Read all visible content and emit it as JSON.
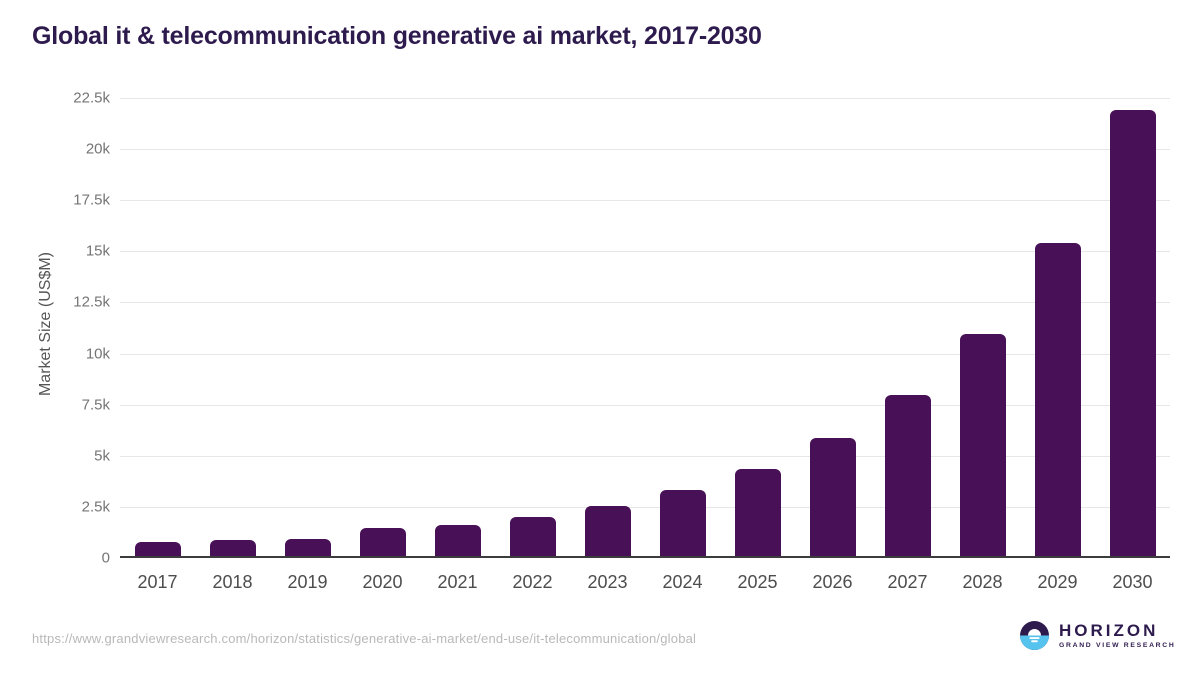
{
  "title": "Global it & telecommunication generative ai market, 2017-2030",
  "source_url": "https://www.grandviewresearch.com/horizon/statistics/generative-ai-market/end-use/it-telecommunication/global",
  "logo": {
    "name": "HORIZON",
    "subtitle": "GRAND VIEW RESEARCH"
  },
  "colors": {
    "bar": "#481157",
    "title": "#2e1b4e",
    "logo_purple": "#2e1b4e",
    "logo_blue": "#56c3ef",
    "gridline": "#e7e7e7",
    "axis_line": "#3c3c3c",
    "y_tick_text": "#757575",
    "x_tick_text": "#4d4d4d",
    "url_text": "#b8b8b8"
  },
  "chart_data": {
    "type": "bar",
    "title": "Global it & telecommunication generative ai market, 2017-2030",
    "categories": [
      "2017",
      "2018",
      "2019",
      "2020",
      "2021",
      "2022",
      "2023",
      "2024",
      "2025",
      "2026",
      "2027",
      "2028",
      "2029",
      "2030"
    ],
    "values": [
      690,
      760,
      830,
      1380,
      1520,
      1900,
      2470,
      3210,
      4260,
      5750,
      7860,
      10840,
      15290,
      21840
    ],
    "xlabel": "",
    "ylabel": "Market Size (US$M)",
    "ylim": [
      0,
      22500
    ],
    "yticks": [
      {
        "value": 0,
        "label": "0"
      },
      {
        "value": 2500,
        "label": "2.5k"
      },
      {
        "value": 5000,
        "label": "5k"
      },
      {
        "value": 7500,
        "label": "7.5k"
      },
      {
        "value": 10000,
        "label": "10k"
      },
      {
        "value": 12500,
        "label": "12.5k"
      },
      {
        "value": 15000,
        "label": "15k"
      },
      {
        "value": 17500,
        "label": "17.5k"
      },
      {
        "value": 20000,
        "label": "20k"
      },
      {
        "value": 22500,
        "label": "22.5k"
      }
    ],
    "grid": true,
    "legend": false,
    "bar_color": "#481157"
  }
}
